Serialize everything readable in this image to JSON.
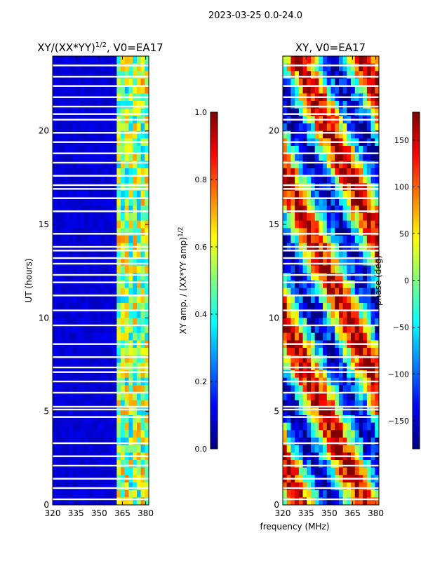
{
  "chart_data": {
    "suptitle": "2023-03-25 0.0-24.0",
    "xlabel": "frequency (MHz)",
    "panels": [
      {
        "id": "amp",
        "type": "heatmap",
        "title_main": "XY/(XX*YY)",
        "title_sup": "1/2",
        "title_rest": ", V0=EA17",
        "ylabel": "UT (hours)",
        "xlim": [
          320,
          382
        ],
        "ylim": [
          0,
          24
        ],
        "xticks": [
          320,
          335,
          350,
          365,
          380
        ],
        "yticks": [
          0,
          5,
          10,
          15,
          20
        ],
        "colorbar": {
          "label_main": "XY amp. / (XX*YY amp)",
          "label_sup": "1/2",
          "range": [
            0.0,
            1.0
          ],
          "ticks": [
            "0.0",
            "0.2",
            "0.4",
            "0.6",
            "0.8",
            "1.0"
          ],
          "tick_values": [
            0.0,
            0.2,
            0.4,
            0.6,
            0.8,
            1.0
          ]
        }
      },
      {
        "id": "phase",
        "type": "heatmap",
        "title_main": "XY, V0=EA17",
        "ylabel": "",
        "xlim": [
          320,
          382
        ],
        "ylim": [
          0,
          24
        ],
        "xticks": [
          320,
          335,
          350,
          365,
          380
        ],
        "yticks": [
          0,
          5,
          10,
          15,
          20
        ],
        "colorbar": {
          "label_main": "phase (deg)",
          "range": [
            -180,
            180
          ],
          "ticks": [
            "−150",
            "−100",
            "−50",
            "0",
            "50",
            "100",
            "150"
          ],
          "tick_values": [
            -150,
            -100,
            -50,
            0,
            50,
            100,
            150
          ]
        }
      }
    ],
    "flagged_ut_hours": [
      0.3,
      0.9,
      1.4,
      2.1,
      2.6,
      3.3,
      4.7,
      5.1,
      5.25,
      6.0,
      6.6,
      7.1,
      7.35,
      7.9,
      8.6,
      9.6,
      10.4,
      11.2,
      11.9,
      12.3,
      12.9,
      13.2,
      13.6,
      13.8,
      14.5,
      15.7,
      16.4,
      16.9,
      17.1,
      17.6,
      18.3,
      18.8,
      19.4,
      19.9,
      20.6,
      20.9,
      21.3,
      21.8,
      22.4,
      22.9,
      23.5
    ]
  }
}
